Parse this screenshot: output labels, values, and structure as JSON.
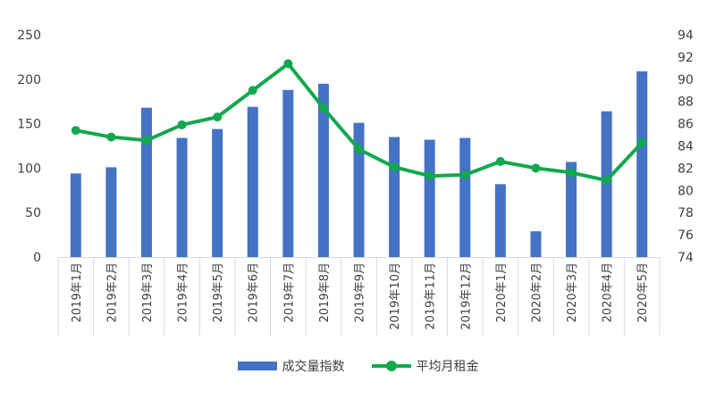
{
  "chart_data": {
    "type": "bar",
    "categories": [
      "2019年1月",
      "2019年2月",
      "2019年3月",
      "2019年4月",
      "2019年5月",
      "2019年6月",
      "2019年7月",
      "2019年8月",
      "2019年9月",
      "2019年10月",
      "2019年11月",
      "2019年12月",
      "2020年1月",
      "2020年2月",
      "2020年3月",
      "2020年4月",
      "2020年5月"
    ],
    "series": [
      {
        "name": "成交量指数",
        "type": "bar",
        "axis": "left",
        "color": "#4472C4",
        "values": [
          94,
          101,
          168,
          134,
          144,
          169,
          188,
          195,
          151,
          135,
          132,
          134,
          82,
          29,
          107,
          164,
          209
        ]
      },
      {
        "name": "平均月租金",
        "type": "line",
        "axis": "right",
        "color": "#12A84E",
        "values": [
          85.4,
          84.8,
          84.5,
          85.9,
          86.6,
          89.0,
          91.4,
          87.4,
          83.7,
          82.1,
          81.3,
          81.4,
          82.6,
          82.0,
          81.6,
          80.9,
          84.3
        ]
      }
    ],
    "y_left": {
      "ylim": [
        0,
        250
      ],
      "ticks": [
        0,
        50,
        100,
        150,
        200,
        250
      ]
    },
    "y_right": {
      "ylim": [
        74,
        94
      ],
      "ticks": [
        74,
        76,
        78,
        80,
        82,
        84,
        86,
        88,
        90,
        92,
        94
      ]
    },
    "title": "",
    "xlabel": "",
    "ylabel": "",
    "grid": false,
    "legend_position": "bottom"
  }
}
